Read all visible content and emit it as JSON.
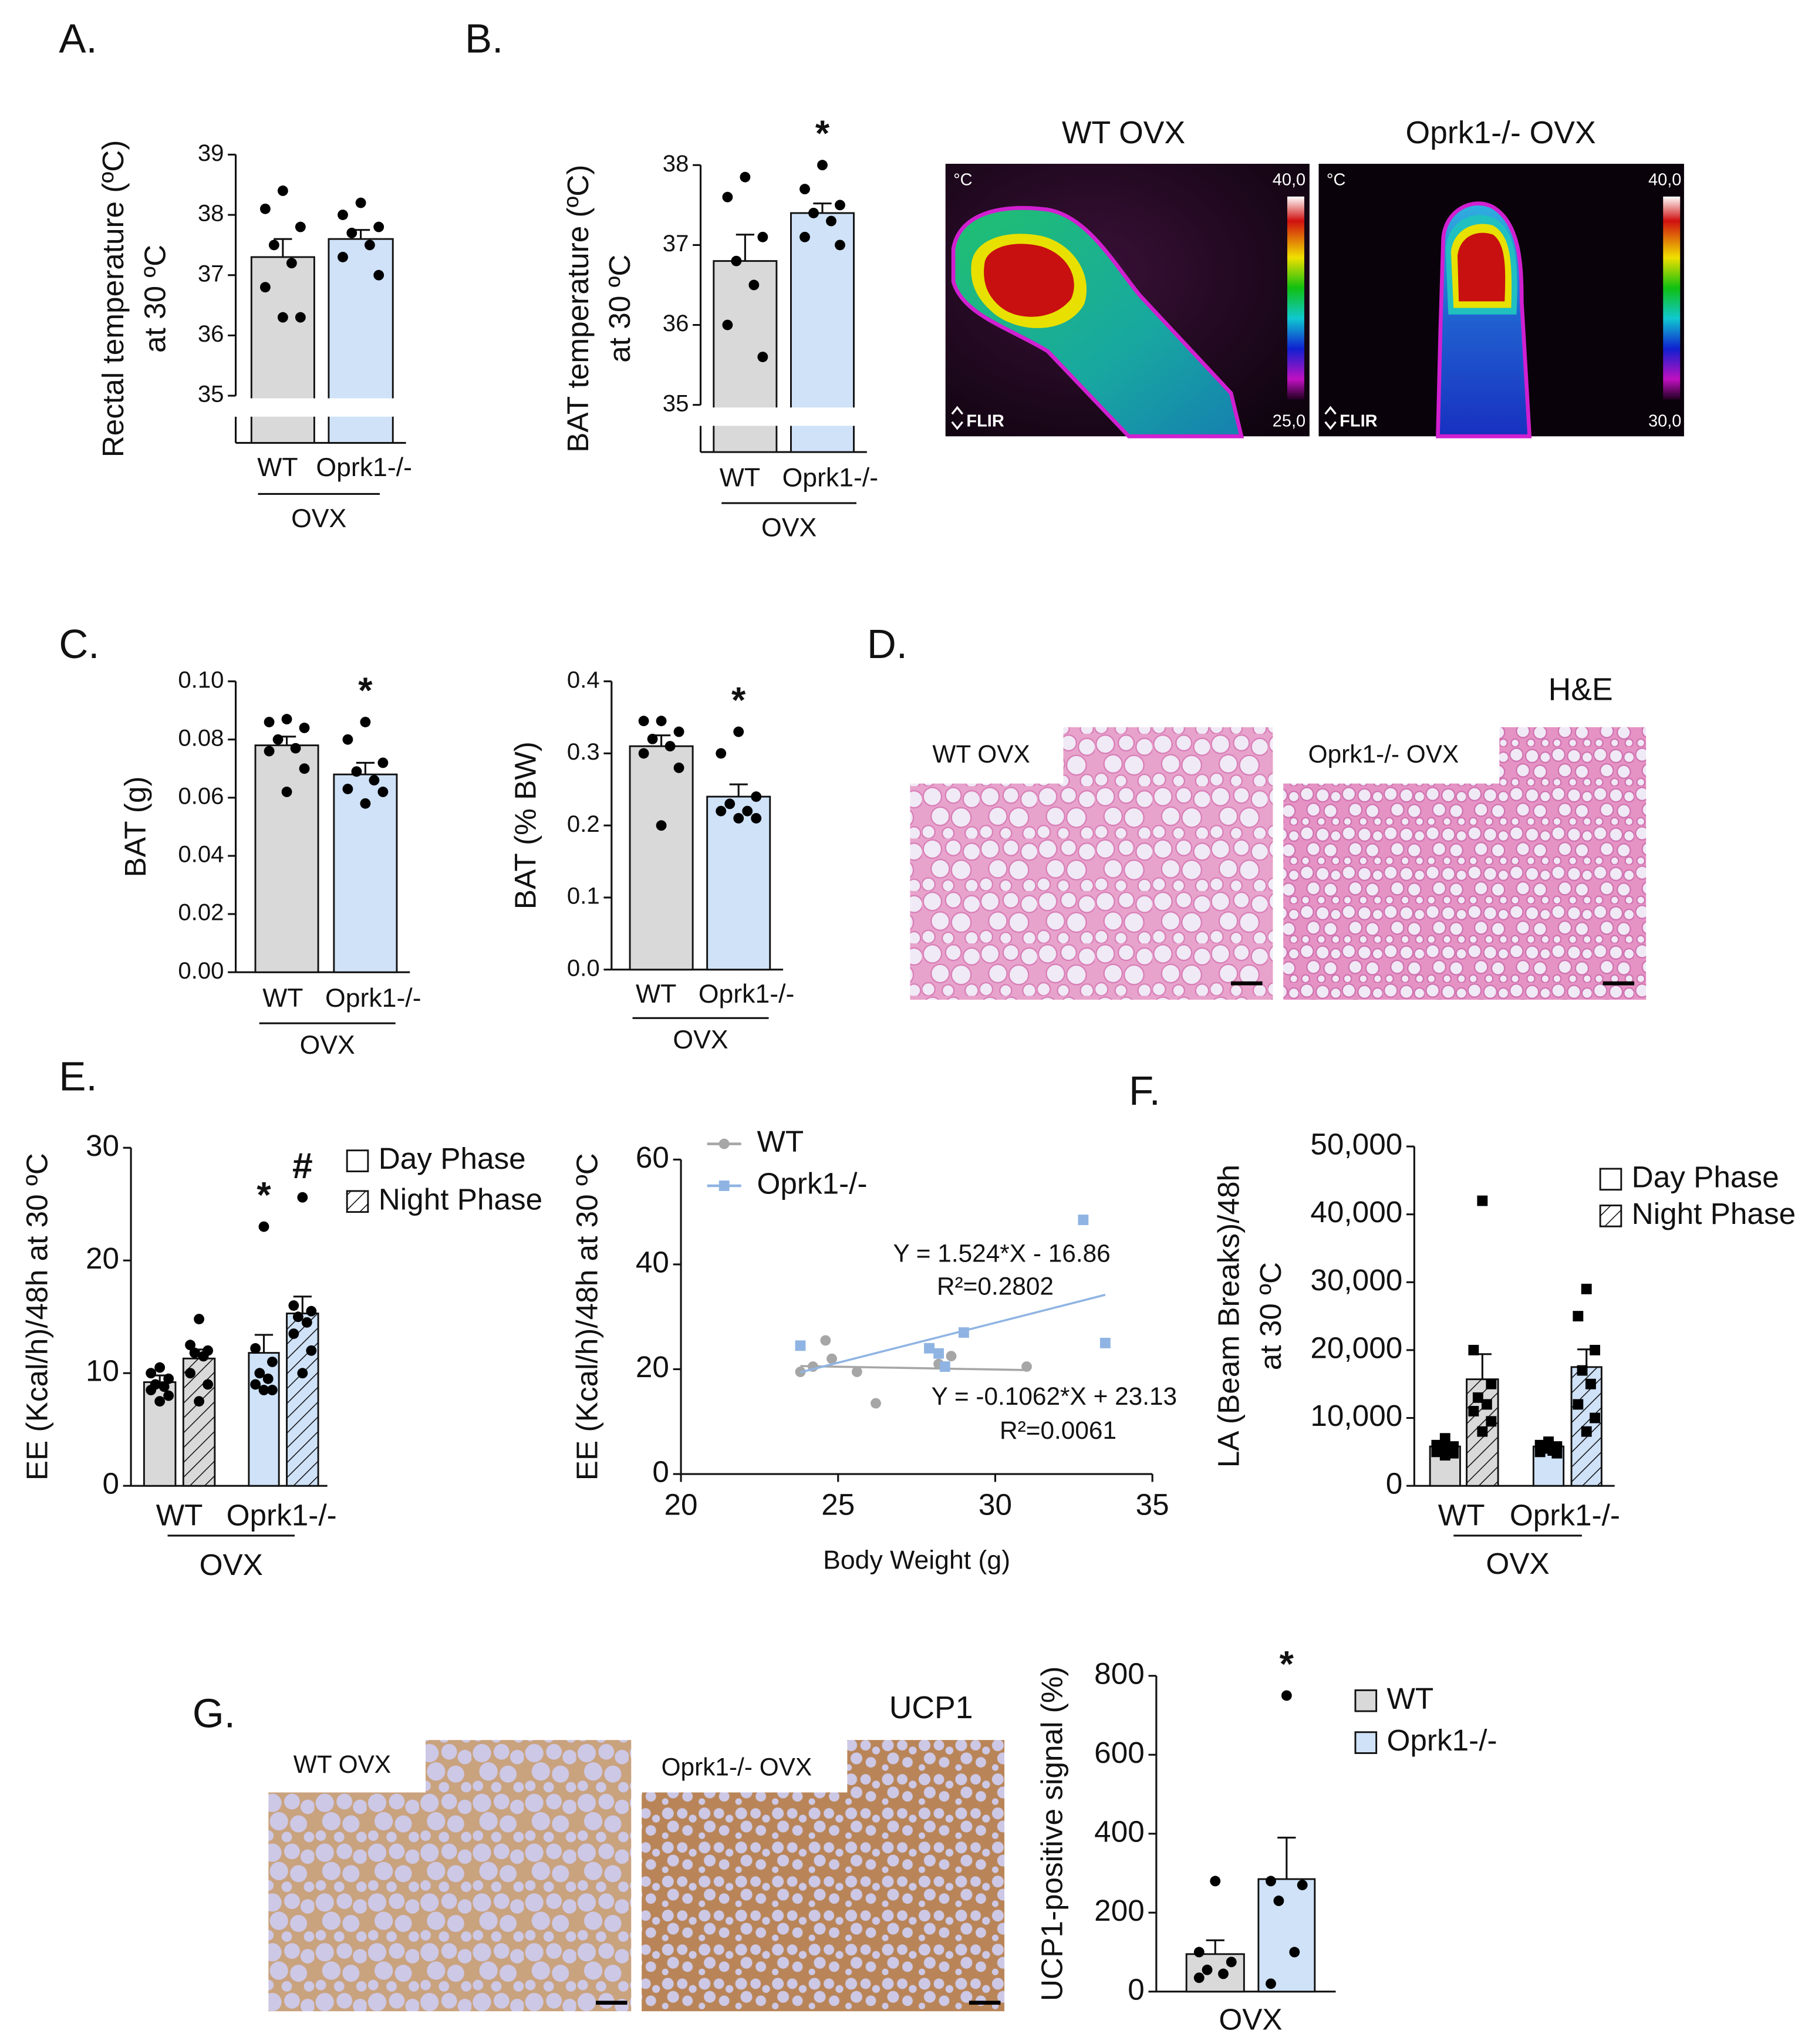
{
  "panel_labels": [
    "A.",
    "B.",
    "C.",
    "D.",
    "E.",
    "F.",
    "G."
  ],
  "chart_data": [
    {
      "type": "bar",
      "y_label": [
        "Rectal temperature (ºC)",
        "at 30 ºC"
      ],
      "categories": [
        "WT",
        "Oprk1-/-"
      ],
      "group_label": "OVX",
      "colors": [
        "#d9d9d9",
        "#cfe2f8"
      ],
      "axis_break": true,
      "marker": "circle",
      "series": [
        {
          "values": [
            37.3,
            37.6
          ],
          "errors": [
            0.3,
            0.15
          ],
          "points": [
            [
              38.4,
              38.1,
              37.8,
              37.5,
              37.2,
              36.8,
              36.3,
              36.3
            ],
            [
              38.2,
              38.0,
              37.8,
              37.7,
              37.5,
              37.3,
              37.0
            ]
          ]
        }
      ],
      "ylim": [
        35,
        39
      ],
      "yticks": [
        35,
        36,
        37,
        38,
        39
      ]
    },
    {
      "type": "bar",
      "y_label": [
        "BAT temperature (ºC)",
        "at 30 ºC"
      ],
      "categories": [
        "WT",
        "Oprk1-/-"
      ],
      "group_label": "OVX",
      "colors": [
        "#d9d9d9",
        "#cfe2f8"
      ],
      "axis_break": true,
      "marker": "circle",
      "series": [
        {
          "values": [
            36.8,
            37.4
          ],
          "errors": [
            0.33,
            0.12
          ],
          "points": [
            [
              37.85,
              37.6,
              37.1,
              36.8,
              36.5,
              36.0,
              35.6
            ],
            [
              38.0,
              37.7,
              37.5,
              37.4,
              37.3,
              37.1,
              37.0
            ]
          ]
        }
      ],
      "ylim": [
        35,
        38
      ],
      "yticks": [
        35,
        36,
        37,
        38
      ],
      "annotations": [
        {
          "text": "*",
          "series": 0,
          "category": 1
        }
      ]
    },
    {
      "type": "bar",
      "y_label": [
        "BAT (g)"
      ],
      "categories": [
        "WT",
        "Oprk1-/-"
      ],
      "group_label": "OVX",
      "colors": [
        "#d9d9d9",
        "#cfe2f8"
      ],
      "marker": "circle",
      "series": [
        {
          "values": [
            0.078,
            0.068
          ],
          "errors": [
            0.003,
            0.004
          ],
          "points": [
            [
              0.087,
              0.086,
              0.084,
              0.08,
              0.077,
              0.076,
              0.07,
              0.062
            ],
            [
              0.086,
              0.08,
              0.072,
              0.069,
              0.066,
              0.063,
              0.062,
              0.058
            ]
          ]
        }
      ],
      "ylim": [
        0,
        0.1
      ],
      "yticks": [
        {
          "value": 0,
          "label": "0.00"
        },
        0.02,
        0.04,
        0.06,
        0.08,
        {
          "value": 0.1,
          "label": "0.10"
        }
      ],
      "annotations": [
        {
          "text": "*",
          "series": 0,
          "category": 1
        }
      ]
    },
    {
      "type": "bar",
      "y_label": [
        "BAT (% BW)"
      ],
      "categories": [
        "WT",
        "Oprk1-/-"
      ],
      "group_label": "OVX",
      "colors": [
        "#d9d9d9",
        "#cfe2f8"
      ],
      "marker": "circle",
      "series": [
        {
          "values": [
            0.31,
            0.24
          ],
          "errors": [
            0.015,
            0.017
          ],
          "points": [
            [
              0.345,
              0.345,
              0.33,
              0.32,
              0.31,
              0.3,
              0.28,
              0.2
            ],
            [
              0.33,
              0.3,
              0.24,
              0.23,
              0.22,
              0.22,
              0.21,
              0.21
            ]
          ]
        }
      ],
      "ylim": [
        0,
        0.4
      ],
      "yticks": [
        {
          "value": 0,
          "label": "0.0"
        },
        0.1,
        0.2,
        0.3,
        0.4
      ],
      "annotations": [
        {
          "text": "*",
          "series": 0,
          "category": 1
        }
      ]
    },
    {
      "type": "bar",
      "y_label": [
        "EE (Kcal/h)/48h at 30 ºC"
      ],
      "categories": [
        "WT",
        "Oprk1-/-"
      ],
      "group_label": "OVX",
      "colors": [
        "#d9d9d9",
        "#cfe2f8"
      ],
      "marker": "circle",
      "legend": "upper right",
      "series": [
        {
          "name": "Day Phase",
          "pattern": "solid",
          "values": [
            9.2,
            11.8
          ],
          "errors": [
            0.6,
            1.6
          ],
          "points": [
            [
              10.5,
              10,
              9.5,
              9,
              8.8,
              8.5,
              8,
              7.5
            ],
            [
              23,
              12.2,
              11,
              10,
              9.5,
              9,
              8.5,
              8.5
            ]
          ]
        },
        {
          "name": "Night Phase",
          "pattern": "hatched",
          "values": [
            11.3,
            15.3
          ],
          "errors": [
            0.8,
            1.5
          ],
          "points": [
            [
              14.8,
              12.5,
              12,
              11.8,
              11.5,
              10,
              9,
              7.5
            ],
            [
              25.6,
              16,
              15.5,
              15,
              14.5,
              13.5,
              12,
              10
            ]
          ]
        }
      ],
      "ylim": [
        0,
        30
      ],
      "yticks": [
        0,
        10,
        20,
        30
      ],
      "annotations": [
        {
          "text": "*",
          "series": 0,
          "category": 1
        },
        {
          "text": "#",
          "series": 1,
          "category": 1
        }
      ]
    },
    {
      "type": "scatter",
      "x_label": "Body Weight (g)",
      "y_label": [
        "EE (Kcal/h)/48h at 30 ºC"
      ],
      "xlim": [
        20,
        35
      ],
      "xticks": [
        20,
        25,
        30,
        35
      ],
      "ylim": [
        0,
        60
      ],
      "yticks": [
        0,
        20,
        40,
        60
      ],
      "legend": "upper left",
      "series": [
        {
          "name": "WT",
          "color": "#a6a6a6",
          "marker": "circle",
          "x": [
            23.8,
            24.2,
            24.6,
            24.8,
            25.6,
            26.2,
            28.2,
            28.6,
            31.0
          ],
          "y": [
            19.5,
            20.5,
            25.5,
            22,
            19.5,
            13.5,
            21,
            22.5,
            20.5
          ],
          "fit": {
            "slope": -0.1062,
            "intercept": 23.13
          }
        },
        {
          "name": "Oprk1-/-",
          "color": "#8fb4e3",
          "marker": "square",
          "x": [
            23.8,
            27.9,
            28.2,
            28.4,
            29.0,
            32.8,
            33.5
          ],
          "y": [
            24.5,
            24,
            23,
            20.5,
            27,
            48.5,
            25
          ],
          "fit": {
            "slope": 1.524,
            "intercept": -16.86
          }
        }
      ],
      "annotations": [
        {
          "text": "Y = 1.524*X - 16.86"
        },
        {
          "text": "R²=0.2802"
        },
        {
          "text": "Y = -0.1062*X + 23.13"
        },
        {
          "text": "R²=0.0061"
        }
      ]
    },
    {
      "type": "bar",
      "y_label": [
        "LA (Beam Breaks)/48h",
        "at 30 ºC"
      ],
      "categories": [
        "WT",
        "Oprk1-/-"
      ],
      "group_label": "OVX",
      "colors": [
        "#d9d9d9",
        "#cfe2f8"
      ],
      "marker": "square",
      "legend": "upper right",
      "series": [
        {
          "name": "Day Phase",
          "pattern": "solid",
          "values": [
            5800,
            5800
          ],
          "errors": [
            400,
            300
          ],
          "points": [
            [
              7000,
              6000,
              5800,
              5500,
              5500,
              5000,
              4800,
              4500
            ],
            [
              6500,
              6000,
              5800,
              5500,
              5200,
              5000,
              4800
            ]
          ]
        },
        {
          "name": "Night Phase",
          "pattern": "hatched",
          "values": [
            15700,
            17500
          ],
          "errors": [
            3700,
            2600
          ],
          "points": [
            [
              42000,
              20000,
              15000,
              13000,
              12000,
              11000,
              9500,
              8000
            ],
            [
              29000,
              25000,
              20000,
              17000,
              15000,
              12000,
              10000,
              8000
            ]
          ]
        }
      ],
      "ylim": [
        0,
        50000
      ],
      "yticks": [
        0,
        {
          "value": 10000,
          "label": "10,000"
        },
        {
          "value": 20000,
          "label": "20,000"
        },
        {
          "value": 30000,
          "label": "30,000"
        },
        {
          "value": 40000,
          "label": "40,000"
        },
        {
          "value": 50000,
          "label": "50,000"
        }
      ]
    },
    {
      "type": "bar",
      "y_label": [
        "UCP1-positive signal (%)"
      ],
      "categories": [
        "OVX"
      ],
      "marker": "circle",
      "legend": "upper right",
      "series": [
        {
          "name": "WT",
          "color": "#d9d9d9",
          "values": [
            95
          ],
          "errors": [
            35
          ],
          "points": [
            [
              280,
              100,
              75,
              55,
              45,
              35
            ]
          ]
        },
        {
          "name": "Oprk1-/-",
          "color": "#cfe2f8",
          "values": [
            285
          ],
          "errors": [
            105
          ],
          "points": [
            [
              750,
              280,
              270,
              230,
              100,
              20
            ]
          ]
        }
      ],
      "ylim": [
        0,
        800
      ],
      "yticks": [
        0,
        200,
        400,
        600,
        800
      ],
      "annotations": [
        {
          "text": "*",
          "series": 1,
          "category": 0
        }
      ]
    }
  ],
  "thermal_images": [
    {
      "title": "WT OVX",
      "unit": "°C",
      "scale_max": "40,0",
      "scale_min": "25,0",
      "brand": "FLIR"
    },
    {
      "title": "Oprk1-/- OVX",
      "unit": "°C",
      "scale_max": "40,0",
      "scale_min": "30,0",
      "brand": "FLIR"
    }
  ],
  "histology": [
    {
      "stain": "H&E",
      "samples": [
        "WT OVX",
        "Oprk1-/- OVX"
      ]
    },
    {
      "stain": "UCP1",
      "samples": [
        "WT OVX",
        "Oprk1-/- OVX"
      ]
    }
  ]
}
